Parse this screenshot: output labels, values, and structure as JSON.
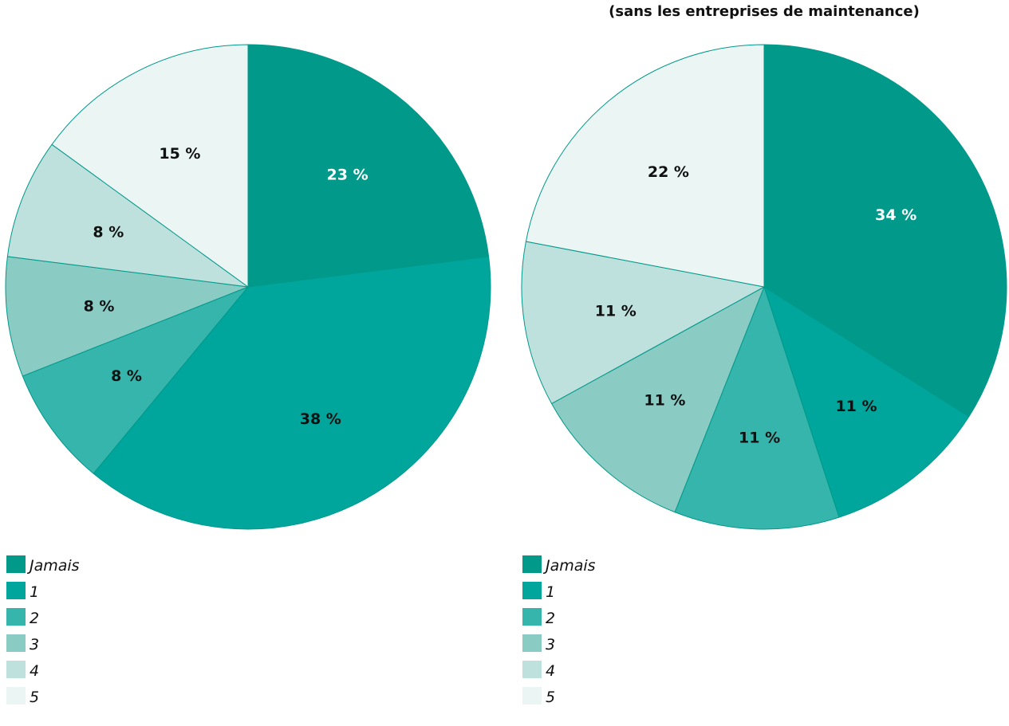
{
  "chart_data": [
    {
      "type": "pie",
      "title": "",
      "subtitle": "",
      "categories": [
        "Jamais",
        "1",
        "2",
        "3",
        "4",
        "5"
      ],
      "values": [
        23,
        38,
        8,
        8,
        8,
        15
      ],
      "labels": [
        "23 %",
        "38 %",
        "8 %",
        "8 %",
        "8 %",
        "15 %"
      ],
      "colors": [
        "#00998a",
        "#00a69c",
        "#35b5ac",
        "#8acbc4",
        "#bfe1de",
        "#eaf5f4"
      ],
      "label_colors": [
        "#ffffff",
        "#111111",
        "#111111",
        "#111111",
        "#111111",
        "#111111"
      ],
      "legend_position": "bottom-left"
    },
    {
      "type": "pie",
      "title": "",
      "subtitle": "(sans les entreprises de maintenance)",
      "categories": [
        "Jamais",
        "1",
        "2",
        "3",
        "4",
        "5"
      ],
      "values": [
        34,
        11,
        11,
        11,
        11,
        22
      ],
      "labels": [
        "34 %",
        "11 %",
        "11 %",
        "11 %",
        "11 %",
        "22 %"
      ],
      "colors": [
        "#00998a",
        "#00a69c",
        "#35b5ac",
        "#8acbc4",
        "#bfe1de",
        "#eaf5f4"
      ],
      "label_colors": [
        "#ffffff",
        "#111111",
        "#111111",
        "#111111",
        "#111111",
        "#111111"
      ],
      "legend_position": "bottom-left"
    }
  ]
}
